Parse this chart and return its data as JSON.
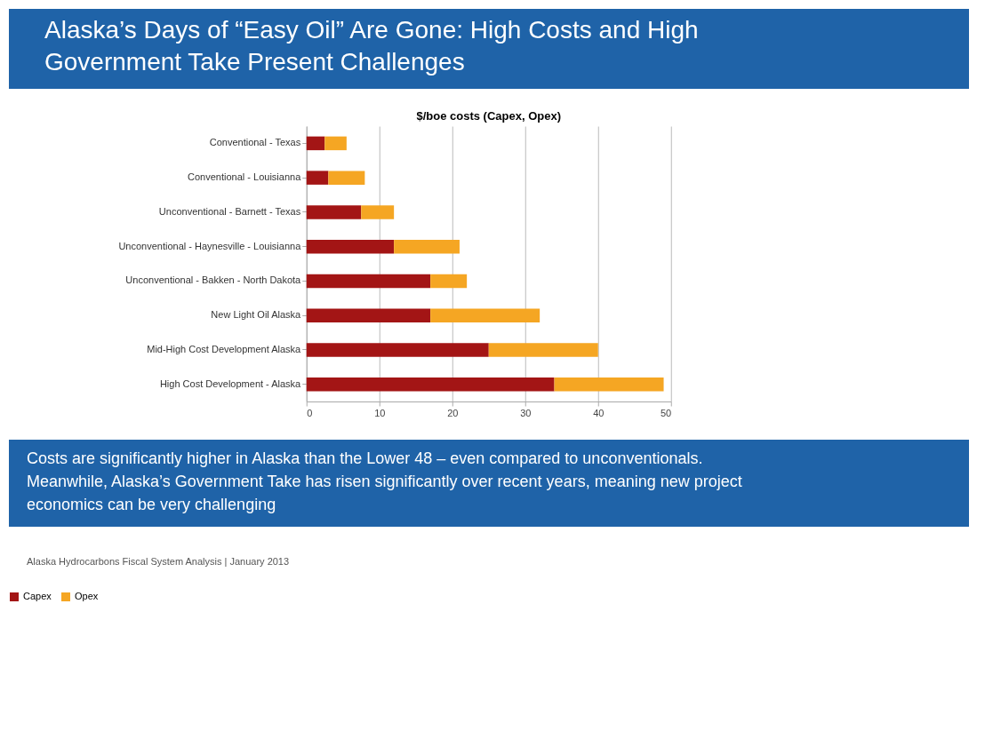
{
  "chart_data": {
    "type": "bar",
    "orientation": "horizontal",
    "stacked": true,
    "title": "Alaska’s Days of “Easy Oil” Are Gone: High Costs and High Government Take Present Challenges",
    "subtitle": "$/boe costs (Capex, Opex)",
    "categories": [
      "Conventional - Texas",
      "Conventional - Louisianna",
      "Unconventional - Barnett - Texas",
      "Unconventional - Haynesville - Louisianna",
      "Unconventional - Bakken - North Dakota",
      "New Light Oil Alaska",
      "Mid-High Cost Development Alaska",
      "High Cost Development - Alaska"
    ],
    "series": [
      {
        "name": "Capex",
        "color": "#a31515",
        "values": [
          2.5,
          3,
          7.5,
          12,
          17,
          17,
          25,
          34
        ]
      },
      {
        "name": "Opex",
        "color": "#f5a623",
        "values": [
          3,
          5,
          4.5,
          9,
          5,
          15,
          15,
          15
        ]
      }
    ],
    "xlim": [
      0,
      50
    ],
    "xticks": [
      0,
      10,
      20,
      30,
      40,
      50
    ],
    "grid": "x",
    "legend": "bottom",
    "annotations": [
      "Costs are significantly higher in Alaska than the Lower 48 – even compared to unconventionals.  Meanwhile, Alaska’s Government Take has risen significantly over recent years, meaning new project economics can be very challenging",
      "Alaska Hydrocarbons Fiscal System Analysis | January 2013"
    ]
  }
}
